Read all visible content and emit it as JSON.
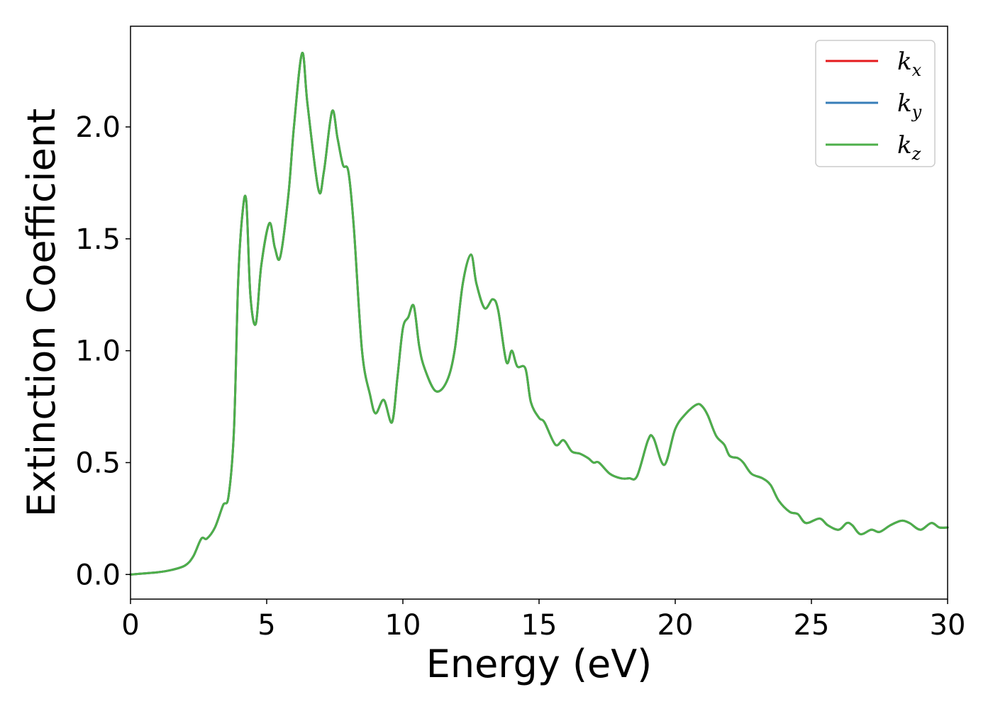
{
  "chart_data": {
    "type": "line",
    "title": "",
    "xlabel": "Energy (eV)",
    "ylabel": "Extinction Coefficient",
    "xlim": [
      0,
      30
    ],
    "ylim": [
      -0.11,
      2.45
    ],
    "x_ticks": [
      "0",
      "5",
      "10",
      "15",
      "20",
      "25",
      "30"
    ],
    "y_ticks": [
      "0.0",
      "0.5",
      "1.0",
      "1.5",
      "2.0"
    ],
    "grid": false,
    "legend_placement": "top-right",
    "series": [
      {
        "name": "k_x",
        "legend_base": "k",
        "legend_sub": "x",
        "color": "#e41a1c",
        "x": [
          0,
          1,
          1.5,
          2,
          2.3,
          2.6,
          2.8,
          3.1,
          3.4,
          3.6,
          3.8,
          3.95,
          4.1,
          4.25,
          4.4,
          4.6,
          4.8,
          5.1,
          5.3,
          5.5,
          5.8,
          6.0,
          6.3,
          6.5,
          6.9,
          7.1,
          7.4,
          7.6,
          7.8,
          8.0,
          8.2,
          8.5,
          8.8,
          9.0,
          9.3,
          9.6,
          9.8,
          10.0,
          10.2,
          10.4,
          10.6,
          10.8,
          11.2,
          11.6,
          11.9,
          12.2,
          12.5,
          12.7,
          13.0,
          13.3,
          13.5,
          13.8,
          14.0,
          14.2,
          14.5,
          14.7,
          15.0,
          15.2,
          15.6,
          15.9,
          16.2,
          16.5,
          16.8,
          17.0,
          17.2,
          17.6,
          18.0,
          18.3,
          18.6,
          19.0,
          19.2,
          19.6,
          20.0,
          20.4,
          20.8,
          21.0,
          21.2,
          21.5,
          21.8,
          22.0,
          22.3,
          22.5,
          22.8,
          23.2,
          23.5,
          23.8,
          24.2,
          24.5,
          24.8,
          25.3,
          25.6,
          26.0,
          26.3,
          26.5,
          26.8,
          27.2,
          27.5,
          27.9,
          28.3,
          28.6,
          29.0,
          29.4,
          29.7,
          30.0
        ],
        "y": [
          0.0,
          0.01,
          0.02,
          0.04,
          0.08,
          0.16,
          0.16,
          0.21,
          0.31,
          0.35,
          0.65,
          1.3,
          1.6,
          1.67,
          1.25,
          1.12,
          1.38,
          1.57,
          1.46,
          1.42,
          1.7,
          2.0,
          2.33,
          2.1,
          1.72,
          1.8,
          2.07,
          1.95,
          1.83,
          1.8,
          1.55,
          1.0,
          0.8,
          0.72,
          0.78,
          0.68,
          0.88,
          1.1,
          1.15,
          1.2,
          1.02,
          0.92,
          0.82,
          0.86,
          1.0,
          1.3,
          1.43,
          1.3,
          1.19,
          1.23,
          1.18,
          0.95,
          1.0,
          0.93,
          0.92,
          0.77,
          0.7,
          0.68,
          0.58,
          0.6,
          0.55,
          0.54,
          0.52,
          0.5,
          0.5,
          0.45,
          0.43,
          0.43,
          0.44,
          0.6,
          0.61,
          0.49,
          0.65,
          0.72,
          0.76,
          0.75,
          0.71,
          0.62,
          0.58,
          0.53,
          0.52,
          0.5,
          0.45,
          0.43,
          0.4,
          0.33,
          0.28,
          0.27,
          0.23,
          0.25,
          0.22,
          0.2,
          0.23,
          0.22,
          0.18,
          0.2,
          0.19,
          0.22,
          0.24,
          0.23,
          0.2,
          0.23,
          0.21,
          0.21
        ]
      },
      {
        "name": "k_y",
        "legend_base": "k",
        "legend_sub": "y",
        "color": "#377eb8",
        "x": [
          0,
          1,
          1.5,
          2,
          2.3,
          2.6,
          2.8,
          3.1,
          3.4,
          3.6,
          3.8,
          3.95,
          4.1,
          4.25,
          4.4,
          4.6,
          4.8,
          5.1,
          5.3,
          5.5,
          5.8,
          6.0,
          6.3,
          6.5,
          6.9,
          7.1,
          7.4,
          7.6,
          7.8,
          8.0,
          8.2,
          8.5,
          8.8,
          9.0,
          9.3,
          9.6,
          9.8,
          10.0,
          10.2,
          10.4,
          10.6,
          10.8,
          11.2,
          11.6,
          11.9,
          12.2,
          12.5,
          12.7,
          13.0,
          13.3,
          13.5,
          13.8,
          14.0,
          14.2,
          14.5,
          14.7,
          15.0,
          15.2,
          15.6,
          15.9,
          16.2,
          16.5,
          16.8,
          17.0,
          17.2,
          17.6,
          18.0,
          18.3,
          18.6,
          19.0,
          19.2,
          19.6,
          20.0,
          20.4,
          20.8,
          21.0,
          21.2,
          21.5,
          21.8,
          22.0,
          22.3,
          22.5,
          22.8,
          23.2,
          23.5,
          23.8,
          24.2,
          24.5,
          24.8,
          25.3,
          25.6,
          26.0,
          26.3,
          26.5,
          26.8,
          27.2,
          27.5,
          27.9,
          28.3,
          28.6,
          29.0,
          29.4,
          29.7,
          30.0
        ],
        "y": [
          0.0,
          0.01,
          0.02,
          0.04,
          0.08,
          0.16,
          0.16,
          0.21,
          0.31,
          0.35,
          0.65,
          1.3,
          1.6,
          1.67,
          1.25,
          1.12,
          1.38,
          1.57,
          1.46,
          1.42,
          1.7,
          2.0,
          2.33,
          2.1,
          1.72,
          1.8,
          2.07,
          1.95,
          1.83,
          1.8,
          1.55,
          1.0,
          0.8,
          0.72,
          0.78,
          0.68,
          0.88,
          1.1,
          1.15,
          1.2,
          1.02,
          0.92,
          0.82,
          0.86,
          1.0,
          1.3,
          1.43,
          1.3,
          1.19,
          1.23,
          1.18,
          0.95,
          1.0,
          0.93,
          0.92,
          0.77,
          0.7,
          0.68,
          0.58,
          0.6,
          0.55,
          0.54,
          0.52,
          0.5,
          0.5,
          0.45,
          0.43,
          0.43,
          0.44,
          0.6,
          0.61,
          0.49,
          0.65,
          0.72,
          0.76,
          0.75,
          0.71,
          0.62,
          0.58,
          0.53,
          0.52,
          0.5,
          0.45,
          0.43,
          0.4,
          0.33,
          0.28,
          0.27,
          0.23,
          0.25,
          0.22,
          0.2,
          0.23,
          0.22,
          0.18,
          0.2,
          0.19,
          0.22,
          0.24,
          0.23,
          0.2,
          0.23,
          0.21,
          0.21
        ]
      },
      {
        "name": "k_z",
        "legend_base": "k",
        "legend_sub": "z",
        "color": "#4daf4a",
        "x": [
          0,
          1,
          1.5,
          2,
          2.3,
          2.6,
          2.8,
          3.1,
          3.4,
          3.6,
          3.8,
          3.95,
          4.1,
          4.25,
          4.4,
          4.6,
          4.8,
          5.1,
          5.3,
          5.5,
          5.8,
          6.0,
          6.3,
          6.5,
          6.9,
          7.1,
          7.4,
          7.6,
          7.8,
          8.0,
          8.2,
          8.5,
          8.8,
          9.0,
          9.3,
          9.6,
          9.8,
          10.0,
          10.2,
          10.4,
          10.6,
          10.8,
          11.2,
          11.6,
          11.9,
          12.2,
          12.5,
          12.7,
          13.0,
          13.3,
          13.5,
          13.8,
          14.0,
          14.2,
          14.5,
          14.7,
          15.0,
          15.2,
          15.6,
          15.9,
          16.2,
          16.5,
          16.8,
          17.0,
          17.2,
          17.6,
          18.0,
          18.3,
          18.6,
          19.0,
          19.2,
          19.6,
          20.0,
          20.4,
          20.8,
          21.0,
          21.2,
          21.5,
          21.8,
          22.0,
          22.3,
          22.5,
          22.8,
          23.2,
          23.5,
          23.8,
          24.2,
          24.5,
          24.8,
          25.3,
          25.6,
          26.0,
          26.3,
          26.5,
          26.8,
          27.2,
          27.5,
          27.9,
          28.3,
          28.6,
          29.0,
          29.4,
          29.7,
          30.0
        ],
        "y": [
          0.0,
          0.01,
          0.02,
          0.04,
          0.08,
          0.16,
          0.16,
          0.21,
          0.31,
          0.35,
          0.65,
          1.3,
          1.6,
          1.67,
          1.25,
          1.12,
          1.38,
          1.57,
          1.46,
          1.42,
          1.7,
          2.0,
          2.33,
          2.1,
          1.72,
          1.8,
          2.07,
          1.95,
          1.83,
          1.8,
          1.55,
          1.0,
          0.8,
          0.72,
          0.78,
          0.68,
          0.88,
          1.1,
          1.15,
          1.2,
          1.02,
          0.92,
          0.82,
          0.86,
          1.0,
          1.3,
          1.43,
          1.3,
          1.19,
          1.23,
          1.18,
          0.95,
          1.0,
          0.93,
          0.92,
          0.77,
          0.7,
          0.68,
          0.58,
          0.6,
          0.55,
          0.54,
          0.52,
          0.5,
          0.5,
          0.45,
          0.43,
          0.43,
          0.44,
          0.6,
          0.61,
          0.49,
          0.65,
          0.72,
          0.76,
          0.75,
          0.71,
          0.62,
          0.58,
          0.53,
          0.52,
          0.5,
          0.45,
          0.43,
          0.4,
          0.33,
          0.28,
          0.27,
          0.23,
          0.25,
          0.22,
          0.2,
          0.23,
          0.22,
          0.18,
          0.2,
          0.19,
          0.22,
          0.24,
          0.23,
          0.2,
          0.23,
          0.21,
          0.21
        ]
      }
    ]
  }
}
